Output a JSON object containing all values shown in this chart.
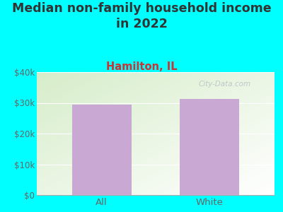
{
  "title": "Median non-family household income\nin 2022",
  "subtitle": "Hamilton, IL",
  "categories": [
    "All",
    "White"
  ],
  "values": [
    29500,
    31300
  ],
  "bar_color": "#c9a8d4",
  "background_color": "#00FFFF",
  "plot_bg_topleft": "#d6edc9",
  "plot_bg_bottomright": "#f5faf0",
  "plot_bg_white": "#ffffff",
  "title_fontsize": 12.5,
  "subtitle_fontsize": 10.5,
  "subtitle_color": "#cc3333",
  "title_color": "#333333",
  "tick_color": "#666666",
  "ylim": [
    0,
    40000
  ],
  "yticks": [
    0,
    10000,
    20000,
    30000,
    40000
  ],
  "ytick_labels": [
    "$0",
    "$10k",
    "$20k",
    "$30k",
    "$40k"
  ],
  "watermark": "City-Data.com"
}
